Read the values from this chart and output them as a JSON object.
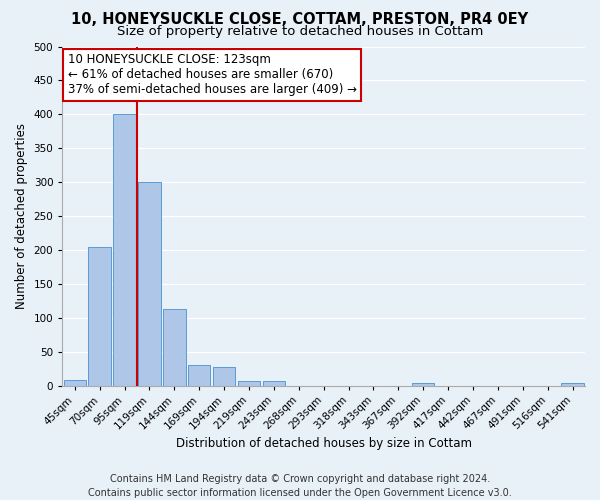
{
  "title": "10, HONEYSUCKLE CLOSE, COTTAM, PRESTON, PR4 0EY",
  "subtitle": "Size of property relative to detached houses in Cottam",
  "xlabel": "Distribution of detached houses by size in Cottam",
  "ylabel": "Number of detached properties",
  "bar_labels": [
    "45sqm",
    "70sqm",
    "95sqm",
    "119sqm",
    "144sqm",
    "169sqm",
    "194sqm",
    "219sqm",
    "243sqm",
    "268sqm",
    "293sqm",
    "318sqm",
    "343sqm",
    "367sqm",
    "392sqm",
    "417sqm",
    "442sqm",
    "467sqm",
    "491sqm",
    "516sqm",
    "541sqm"
  ],
  "bar_values": [
    8,
    204,
    400,
    300,
    113,
    30,
    27,
    6,
    6,
    0,
    0,
    0,
    0,
    0,
    4,
    0,
    0,
    0,
    0,
    0,
    4
  ],
  "bar_color": "#aec6e8",
  "bar_edge_color": "#5b9bd5",
  "vline_x": 2.5,
  "vline_color": "#cc0000",
  "annotation_line1": "10 HONEYSUCKLE CLOSE: 123sqm",
  "annotation_line2": "← 61% of detached houses are smaller (670)",
  "annotation_line3": "37% of semi-detached houses are larger (409) →",
  "annotation_box_color": "#ffffff",
  "annotation_box_edge": "#cc0000",
  "ylim": [
    0,
    500
  ],
  "yticks": [
    0,
    50,
    100,
    150,
    200,
    250,
    300,
    350,
    400,
    450,
    500
  ],
  "footer_text": "Contains HM Land Registry data © Crown copyright and database right 2024.\nContains public sector information licensed under the Open Government Licence v3.0.",
  "bg_color": "#e8f0f8",
  "grid_color": "#ffffff",
  "title_fontsize": 10.5,
  "subtitle_fontsize": 9.5,
  "axis_label_fontsize": 8.5,
  "tick_fontsize": 7.5,
  "annotation_fontsize": 8.5,
  "footer_fontsize": 7
}
